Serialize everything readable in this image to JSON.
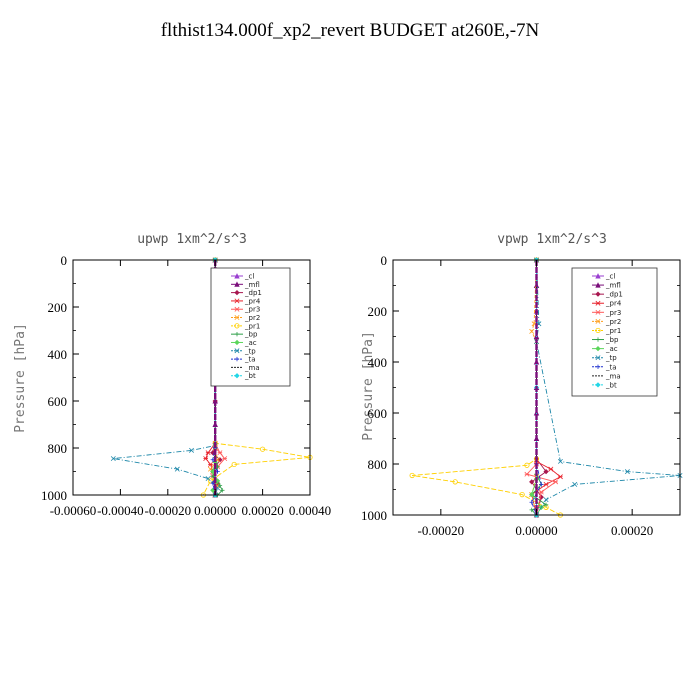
{
  "title": "flthist134.000f_xp2_revert  BUDGET at260E,-7N",
  "colors": {
    "_cl": "#9a3fd0",
    "_mfl": "#7a0e7a",
    "_dp1": "#a8174f",
    "_pr4": "#e8202a",
    "_pr3": "#ff5a5a",
    "_pr2": "#ff9f1c",
    "_pr1": "#ffd000",
    "_bp": "#2e9e48",
    "_ac": "#5bd65b",
    "_tp": "#1b86a8",
    "_ta": "#1d2fd0",
    "_ma": "#222222",
    "_bt": "#22d6e6"
  },
  "chart_data": [
    {
      "type": "line",
      "title": "upwp   1xm^2/s^3",
      "ylabel": "Pressure [hPa]",
      "xlim": [
        -0.0006,
        0.0004
      ],
      "ylim": [
        1000,
        0
      ],
      "xticks": [
        "-0.00060",
        "-0.00040",
        "-0.00020",
        "0.00000",
        "0.00020",
        "0.00040"
      ],
      "xtick_values": [
        -0.0006,
        -0.0004,
        -0.0002,
        0,
        0.0002,
        0.0004
      ],
      "yticks": [
        0,
        200,
        400,
        600,
        800,
        1000
      ],
      "legend_placement": "top-right",
      "series": [
        {
          "name": "_cl",
          "x": [
            0,
            0,
            0,
            0,
            0,
            0,
            0,
            0,
            0,
            0
          ],
          "y": [
            0,
            100,
            200,
            300,
            400,
            500,
            600,
            700,
            800,
            1000
          ]
        },
        {
          "name": "_mfl",
          "x": [
            0,
            0,
            0,
            0,
            0,
            0,
            0,
            0,
            0,
            0
          ],
          "y": [
            0,
            100,
            200,
            300,
            400,
            500,
            600,
            700,
            800,
            1000
          ]
        },
        {
          "name": "_dp1",
          "x": [
            0,
            0,
            0,
            -1e-05,
            2e-05,
            -1e-05,
            1e-05,
            0
          ],
          "y": [
            0,
            600,
            780,
            820,
            850,
            900,
            950,
            1000
          ]
        },
        {
          "name": "_pr4",
          "x": [
            0,
            0,
            -3e-05,
            -4e-05,
            -2e-05,
            -1e-05,
            0
          ],
          "y": [
            0,
            780,
            820,
            845,
            870,
            900,
            1000
          ]
        },
        {
          "name": "_pr3",
          "x": [
            0,
            0,
            2e-05,
            4e-05,
            1e-05,
            -1e-05,
            0
          ],
          "y": [
            0,
            780,
            820,
            845,
            880,
            920,
            1000
          ]
        },
        {
          "name": "_pr2",
          "x": [
            0,
            0,
            1e-05,
            -2e-05,
            0,
            1e-05,
            0
          ],
          "y": [
            0,
            800,
            850,
            890,
            930,
            960,
            1000
          ]
        },
        {
          "name": "_pr1",
          "x": [
            0,
            0,
            0.0002,
            0.0004,
            8e-05,
            -2e-05,
            -5e-05
          ],
          "y": [
            0,
            780,
            805,
            840,
            870,
            940,
            1000
          ]
        },
        {
          "name": "_bp",
          "x": [
            0,
            0,
            1e-05,
            -1e-05,
            2e-05,
            3e-05,
            1e-05
          ],
          "y": [
            0,
            840,
            880,
            920,
            960,
            980,
            1000
          ]
        },
        {
          "name": "_ac",
          "x": [
            0,
            0,
            -1e-05,
            1e-05,
            -1e-05,
            0
          ],
          "y": [
            0,
            860,
            900,
            940,
            980,
            1000
          ]
        },
        {
          "name": "_tp",
          "x": [
            0,
            0,
            -0.0001,
            -0.00043,
            -0.00016,
            -3e-05,
            1e-05,
            0
          ],
          "y": [
            0,
            790,
            810,
            845,
            890,
            930,
            970,
            1000
          ]
        },
        {
          "name": "_ta",
          "x": [
            0,
            0,
            -1e-05,
            1e-05,
            -1e-05,
            0
          ],
          "y": [
            0,
            800,
            850,
            900,
            950,
            1000
          ]
        },
        {
          "name": "_ma",
          "x": [
            0,
            0,
            0
          ],
          "y": [
            0,
            500,
            1000
          ]
        },
        {
          "name": "_bt",
          "x": [
            0,
            0,
            0
          ],
          "y": [
            0,
            500,
            1000
          ]
        }
      ]
    },
    {
      "type": "line",
      "title": "vpwp   1xm^2/s^3",
      "ylabel": "Pressure [hPa]",
      "xlim": [
        -0.0003,
        0.0003
      ],
      "ylim": [
        1000,
        0
      ],
      "xticks": [
        "-0.00020",
        "0.00000",
        "0.00020"
      ],
      "xtick_values": [
        -0.0002,
        0,
        0.0002
      ],
      "yticks": [
        0,
        200,
        400,
        600,
        800,
        1000
      ],
      "legend_placement": "top-right",
      "series": [
        {
          "name": "_cl",
          "x": [
            0,
            0,
            0,
            0,
            0,
            0,
            0,
            0,
            0
          ],
          "y": [
            0,
            100,
            200,
            300,
            400,
            500,
            600,
            700,
            1000
          ]
        },
        {
          "name": "_mfl",
          "x": [
            0,
            0,
            0,
            0,
            0,
            0,
            0,
            0,
            0
          ],
          "y": [
            0,
            100,
            200,
            300,
            400,
            500,
            600,
            700,
            1000
          ]
        },
        {
          "name": "_dp1",
          "x": [
            0,
            0,
            2e-05,
            -1e-05,
            1e-05,
            0
          ],
          "y": [
            0,
            780,
            830,
            870,
            930,
            1000
          ]
        },
        {
          "name": "_pr4",
          "x": [
            0,
            0,
            3e-05,
            5e-05,
            2e-05,
            -1e-05,
            0
          ],
          "y": [
            0,
            790,
            820,
            850,
            880,
            920,
            1000
          ]
        },
        {
          "name": "_pr3",
          "x": [
            0,
            0,
            -2e-05,
            4e-05,
            1e-05,
            0
          ],
          "y": [
            0,
            800,
            840,
            870,
            910,
            1000
          ]
        },
        {
          "name": "_pr2",
          "x": [
            0,
            -5e-06,
            -1e-05,
            0,
            0,
            -1e-05,
            0
          ],
          "y": [
            0,
            250,
            280,
            320,
            850,
            920,
            1000
          ]
        },
        {
          "name": "_pr1",
          "x": [
            0,
            0,
            -2e-05,
            -0.00026,
            -0.00017,
            -3e-05,
            2e-05,
            5e-05
          ],
          "y": [
            0,
            780,
            805,
            845,
            870,
            920,
            970,
            1000
          ]
        },
        {
          "name": "_bp",
          "x": [
            0,
            0,
            1e-05,
            -1e-05,
            2e-05,
            -1e-05,
            0
          ],
          "y": [
            0,
            840,
            880,
            920,
            960,
            980,
            1000
          ]
        },
        {
          "name": "_ac",
          "x": [
            0,
            0,
            -1e-05,
            1e-05,
            0
          ],
          "y": [
            0,
            860,
            920,
            970,
            1000
          ]
        },
        {
          "name": "_tp",
          "x": [
            0,
            5e-06,
            0,
            5e-05,
            0.00019,
            0.0003,
            8e-05,
            2e-05,
            0
          ],
          "y": [
            0,
            250,
            320,
            790,
            830,
            845,
            880,
            940,
            1000
          ]
        },
        {
          "name": "_ta",
          "x": [
            0,
            0,
            1e-05,
            -1e-05,
            0
          ],
          "y": [
            0,
            800,
            880,
            950,
            1000
          ]
        },
        {
          "name": "_ma",
          "x": [
            0,
            0,
            0
          ],
          "y": [
            0,
            500,
            1000
          ]
        },
        {
          "name": "_bt",
          "x": [
            0,
            0,
            0
          ],
          "y": [
            0,
            500,
            1000
          ]
        }
      ]
    }
  ]
}
